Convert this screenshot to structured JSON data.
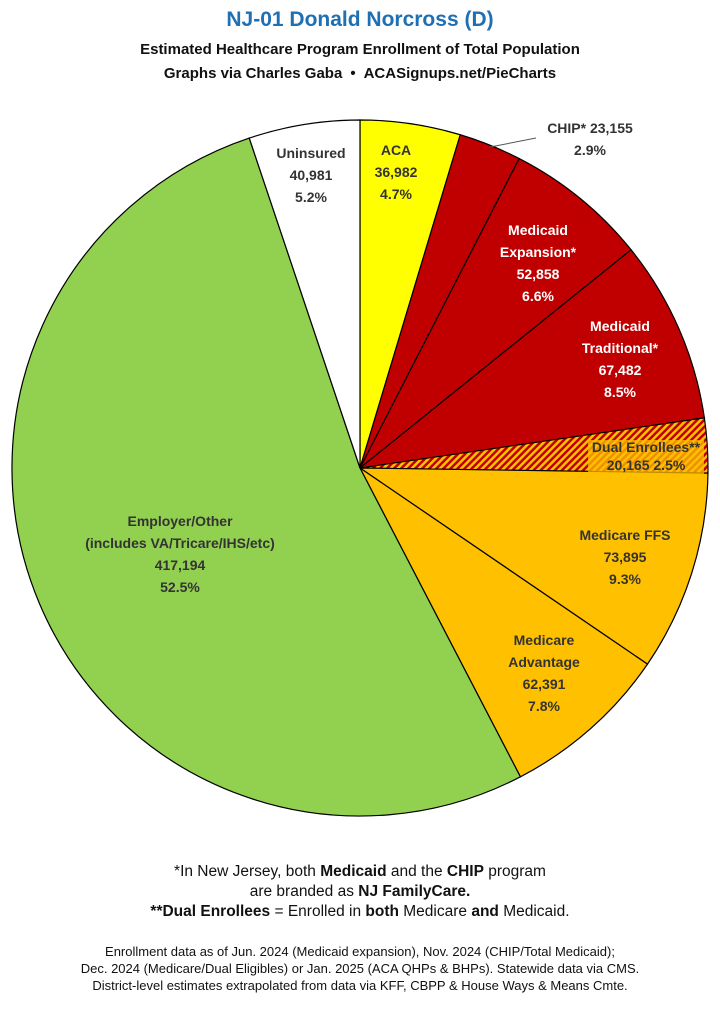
{
  "title": "NJ-01 Donald Norcross (D)",
  "subtitle": "Estimated Healthcare Program Enrollment of Total Population",
  "credit_left": "Graphs via Charles Gaba",
  "credit_sep": "•",
  "credit_right": "ACASignups.net/PieCharts",
  "colors": {
    "aca": "#ffff00",
    "medicaid": "#c00000",
    "dual_stripe_a": "#c00000",
    "dual_stripe_b": "#ffc000",
    "medicare": "#ffc000",
    "employer": "#92d050",
    "uninsured": "#ffffff",
    "title": "#1f6fb4"
  },
  "chart_data": {
    "type": "pie",
    "start_angle_deg": 0,
    "direction": "clockwise",
    "slices": [
      {
        "key": "aca",
        "label_lines": [
          "ACA",
          "36,982",
          "4.7%"
        ],
        "value": 36982,
        "percent": 4.7,
        "color": "#ffff00",
        "fill": "solid",
        "text_color": "#333333"
      },
      {
        "key": "chip",
        "label_lines": [
          "CHIP* 23,155",
          "2.9%"
        ],
        "value": 23155,
        "percent": 2.9,
        "color": "#c00000",
        "fill": "solid",
        "text_color": "#333333",
        "label_outside": true
      },
      {
        "key": "medicaid_expansion",
        "label_lines": [
          "Medicaid",
          "Expansion*",
          "52,858",
          "6.6%"
        ],
        "value": 52858,
        "percent": 6.6,
        "color": "#c00000",
        "fill": "solid",
        "text_color": "#ffffff"
      },
      {
        "key": "medicaid_traditional",
        "label_lines": [
          "Medicaid",
          "Traditional*",
          "67,482",
          "8.5%"
        ],
        "value": 67482,
        "percent": 8.5,
        "color": "#c00000",
        "fill": "solid",
        "text_color": "#ffffff"
      },
      {
        "key": "dual",
        "label_lines": [
          "Dual Enrollees**",
          "20,165 2.5%"
        ],
        "value": 20165,
        "percent": 2.5,
        "color": "#c00000",
        "fill": "hatch",
        "text_color": "#333333"
      },
      {
        "key": "medicare_ffs",
        "label_lines": [
          "Medicare FFS",
          "73,895",
          "9.3%"
        ],
        "value": 73895,
        "percent": 9.3,
        "color": "#ffc000",
        "fill": "solid",
        "text_color": "#333333"
      },
      {
        "key": "medicare_advantage",
        "label_lines": [
          "Medicare",
          "Advantage",
          "62,391",
          "7.8%"
        ],
        "value": 62391,
        "percent": 7.8,
        "color": "#ffc000",
        "fill": "solid",
        "text_color": "#333333"
      },
      {
        "key": "employer",
        "label_lines": [
          "Employer/Other",
          "(includes VA/Tricare/IHS/etc)",
          "417,194",
          "52.5%"
        ],
        "value": 417194,
        "percent": 52.5,
        "color": "#92d050",
        "fill": "solid",
        "text_color": "#333333"
      },
      {
        "key": "uninsured",
        "label_lines": [
          "Uninsured",
          "40,981",
          "5.2%"
        ],
        "value": 40981,
        "percent": 5.2,
        "color": "#ffffff",
        "fill": "solid",
        "text_color": "#333333"
      }
    ]
  },
  "notes": {
    "line1_a": "*In New Jersey, both ",
    "line1_b": "Medicaid",
    "line1_c": " and the ",
    "line1_d": "CHIP",
    "line1_e": " program",
    "line2_a": "are branded as ",
    "line2_b": "NJ FamilyCare.",
    "line3_a": "**Dual Enrollees",
    "line3_b": " = Enrolled in ",
    "line3_c": "both",
    "line3_d": " Medicare ",
    "line3_e": "and",
    "line3_f": " Medicaid."
  },
  "source": {
    "line1": "Enrollment data as of Jun. 2024 (Medicaid expansion), Nov. 2024 (CHIP/Total Medicaid);",
    "line2": "Dec. 2024 (Medicare/Dual Eligibles) or Jan. 2025 (ACA QHPs & BHPs). Statewide data via CMS.",
    "line3": "District-level estimates extrapolated from data via KFF, CBPP & House Ways & Means Cmte."
  }
}
